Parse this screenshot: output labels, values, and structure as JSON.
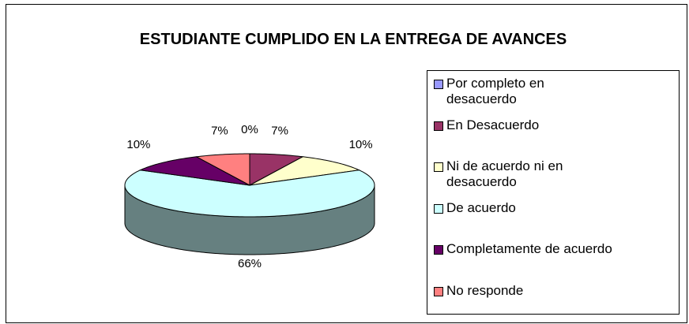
{
  "chart_data": {
    "type": "pie3d",
    "title": "ESTUDIANTE CUMPLIDO EN LA ENTREGA DE AVANCES",
    "categories": [
      "Por completo en desacuerdo",
      "En Desacuerdo",
      "Ni de acuerdo ni en desacuerdo",
      "De acuerdo",
      "Completamente de acuerdo",
      "No responde"
    ],
    "values": [
      0,
      7,
      10,
      66,
      10,
      7
    ],
    "value_labels": [
      "0%",
      "7%",
      "10%",
      "66%",
      "10%",
      "7%"
    ],
    "colors": [
      "#9999ff",
      "#993366",
      "#ffffcc",
      "#ccffff",
      "#660066",
      "#ff8080"
    ],
    "legend": "right"
  }
}
